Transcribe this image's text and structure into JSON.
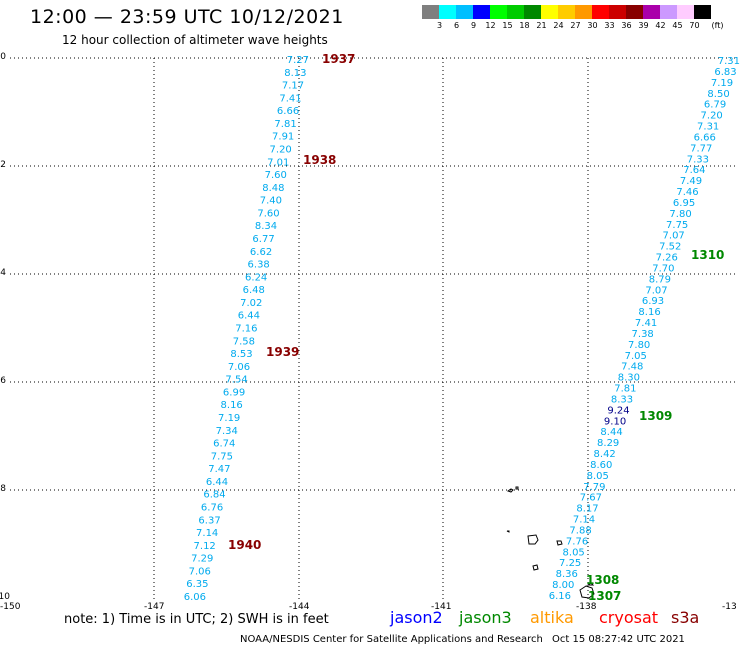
{
  "header": {
    "title": "12:00 — 23:59 UTC 10/12/2021",
    "subtitle": "12 hour collection of altimeter wave heights"
  },
  "legend": {
    "colors": [
      "#7f7f7f",
      "#00ffff",
      "#00bfff",
      "#0000ff",
      "#00ff00",
      "#00cc00",
      "#008800",
      "#ffff00",
      "#ffcc00",
      "#ff9900",
      "#ff0000",
      "#cc0000",
      "#880000",
      "#aa00aa",
      "#cc99ff",
      "#ffccff",
      "#000000"
    ],
    "labels": [
      "",
      "3",
      "6",
      "9",
      "12",
      "15",
      "18",
      "21",
      "24",
      "27",
      "30",
      "33",
      "36",
      "39",
      "42",
      "45",
      "70",
      "(ft)"
    ]
  },
  "axes": {
    "y_labels": [
      "0",
      "-2",
      "-4",
      "-6",
      "-8",
      "-10"
    ],
    "x_labels": [
      "-150",
      "-147",
      "-144",
      "-141",
      "-138",
      "-13"
    ]
  },
  "tracks": [
    {
      "color": "#00aaee",
      "values": [
        "7.27",
        "8.13",
        "7.17",
        "7.41",
        "6.66",
        "7.81",
        "7.91",
        "7.20",
        "7.01",
        "7.60",
        "8.48",
        "7.40",
        "7.60",
        "8.34",
        "6.77",
        "6.62",
        "6.38",
        "6.24",
        "6.48",
        "7.02",
        "6.44",
        "7.16",
        "7.58",
        "8.53",
        "7.06",
        "7.54",
        "6.99",
        "8.16",
        "7.19",
        "7.34",
        "6.74",
        "7.75",
        "7.47",
        "6.44",
        "6.84",
        "6.76",
        "6.37",
        "7.14",
        "7.12",
        "7.29",
        "7.06",
        "6.35",
        "6.06"
      ],
      "times": [
        {
          "label": "1937",
          "color": "#880000"
        },
        {
          "label": "1938",
          "color": "#880000"
        },
        {
          "label": "1939",
          "color": "#880000"
        },
        {
          "label": "1940",
          "color": "#880000"
        }
      ]
    },
    {
      "color": "#00aaee",
      "values": [
        "7.31",
        "6.83",
        "7.19",
        "8.50",
        "6.79",
        "7.20",
        "7.31",
        "6.66",
        "7.77",
        "7.33",
        "7.64",
        "7.49",
        "7.46",
        "6.95",
        "7.80",
        "7.75",
        "7.07",
        "7.52",
        "7.26",
        "7.70",
        "8.79",
        "7.07",
        "6.93",
        "8.16",
        "7.41",
        "7.38",
        "7.80",
        "7.05",
        "7.48",
        "8.30",
        "7.81",
        "8.33",
        "9.24",
        "9.10",
        "8.44",
        "8.29",
        "8.42",
        "8.60",
        "8.05",
        "7.79",
        "7.67",
        "8.17",
        "7.14",
        "7.88",
        "7.76",
        "8.05",
        "7.25",
        "8.36",
        "8.00",
        "6.16"
      ],
      "times": [
        {
          "label": "1310",
          "color": "#008800"
        },
        {
          "label": "1309",
          "color": "#008800"
        },
        {
          "label": "1308",
          "color": "#008800"
        },
        {
          "label": "1307",
          "color": "#008800"
        }
      ]
    }
  ],
  "footer": {
    "note": "note:  1) Time is in UTC;  2) SWH is in feet",
    "satellites": [
      {
        "label": "jason2",
        "color": "#0000ff"
      },
      {
        "label": "jason3",
        "color": "#008800"
      },
      {
        "label": "altika",
        "color": "#ff9900"
      },
      {
        "label": "cryosat",
        "color": "#ff0000"
      },
      {
        "label": "s3a",
        "color": "#880000"
      }
    ],
    "credit": "NOAA/NESDIS Center for Satellite Applications and Research",
    "timestamp": "Oct 15 08:27:42 UTC 2021"
  }
}
